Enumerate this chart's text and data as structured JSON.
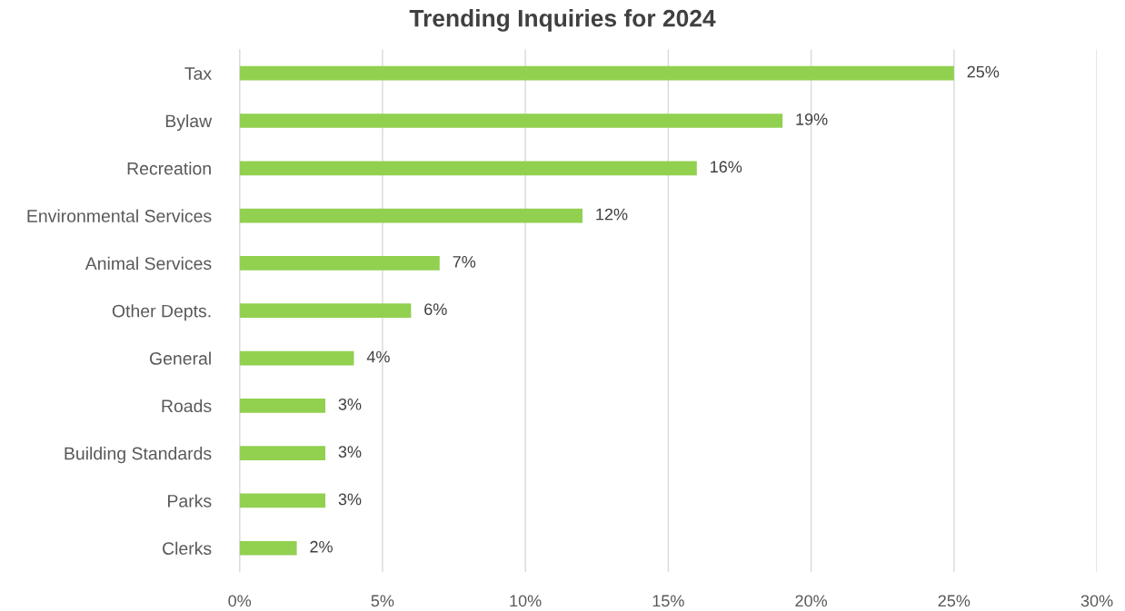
{
  "chart_data": {
    "type": "bar",
    "orientation": "horizontal",
    "title": "Trending Inquiries for 2024",
    "categories": [
      "Tax",
      "Bylaw",
      "Recreation",
      "Environmental Services",
      "Animal Services",
      "Other Depts.",
      "General",
      "Roads",
      "Building Standards",
      "Parks",
      "Clerks"
    ],
    "values": [
      25,
      19,
      16,
      12,
      7,
      6,
      4,
      3,
      3,
      3,
      2
    ],
    "value_labels": [
      "25%",
      "19%",
      "16%",
      "12%",
      "7%",
      "6%",
      "4%",
      "3%",
      "3%",
      "3%",
      "2%"
    ],
    "color": "#92d050",
    "xlim": [
      0,
      30
    ],
    "xticks": [
      {
        "value": 0,
        "label": "0%"
      },
      {
        "value": 5,
        "label": "5%"
      },
      {
        "value": 10,
        "label": "10%"
      },
      {
        "value": 15,
        "label": "15%"
      },
      {
        "value": 20,
        "label": "20%"
      },
      {
        "value": 25,
        "label": "25%"
      },
      {
        "value": 30,
        "label": "30%"
      }
    ],
    "grid": "x",
    "legend": false
  }
}
